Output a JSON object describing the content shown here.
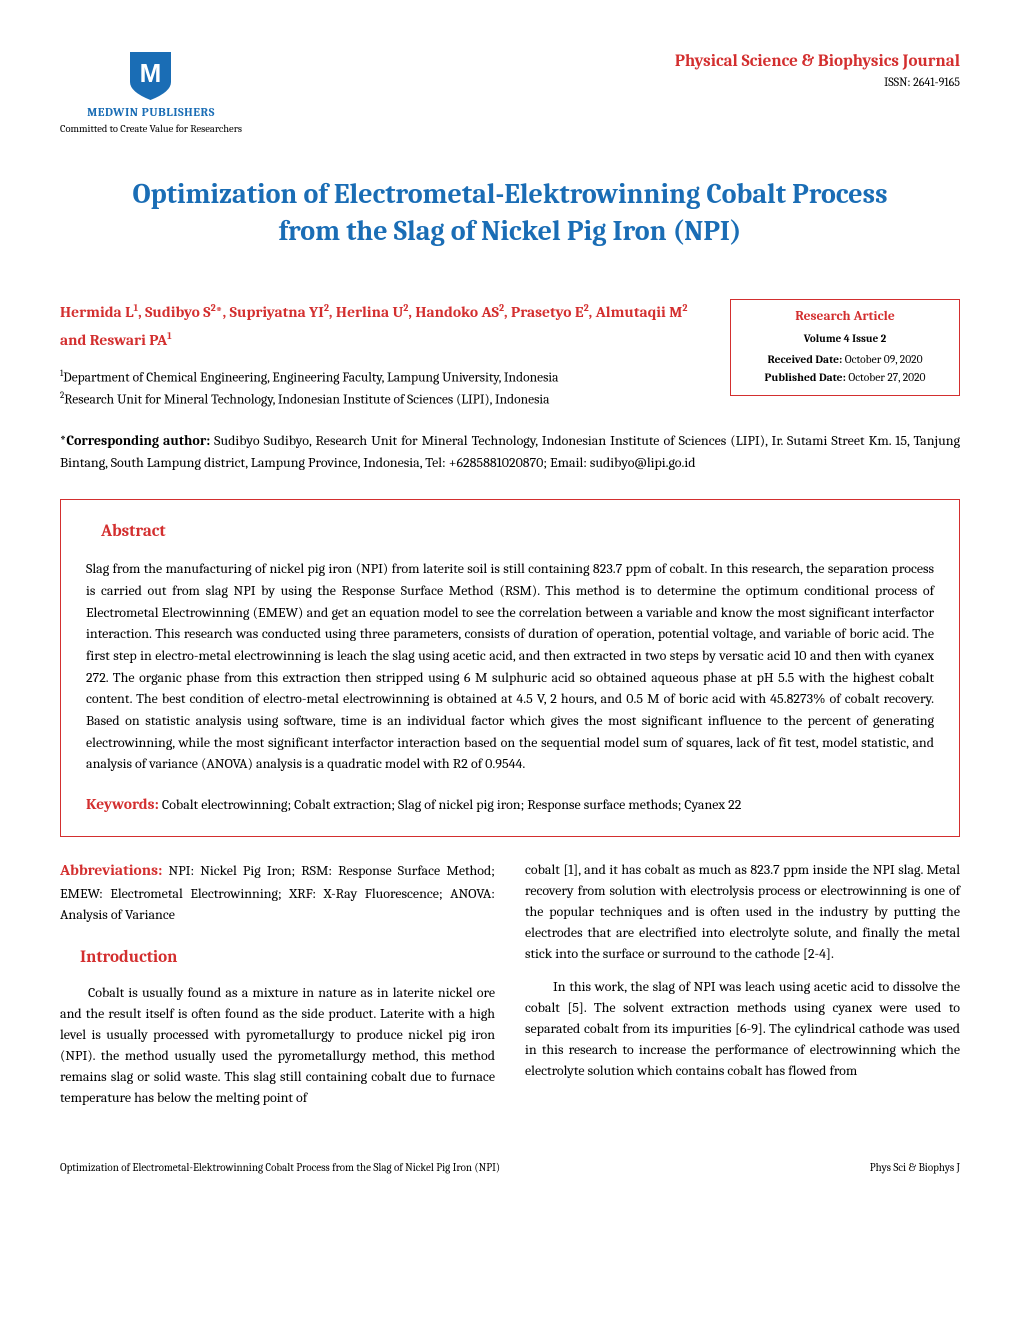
{
  "publisher": {
    "name": "MEDWIN PUBLISHERS",
    "tagline": "Committed to Create Value for Researchers",
    "logo_color": "#1a6db5",
    "logo_letter": "M"
  },
  "journal": {
    "name": "Physical Science & Biophysics Journal",
    "issn": "ISSN: 2641-9165"
  },
  "title": "Optimization of Electrometal-Elektrowinning Cobalt Process from the Slag of Nickel Pig Iron (NPI)",
  "authors_html": "Hermida L<sup>1</sup>, Sudibyo S<sup>2</sup>*, Supriyatna YI<sup>2</sup>, Herlina U<sup>2</sup>, Handoko AS<sup>2</sup>, Prasetyo E<sup>2</sup>, Almutaqii M<sup>2</sup> and Reswari PA<sup>1</sup>",
  "affiliations": [
    "Department of Chemical Engineering, Engineering Faculty, Lampung University, Indonesia",
    "Research Unit for Mineral Technology, Indonesian Institute of Sciences (LIPI), Indonesia"
  ],
  "info_box": {
    "type": "Research Article",
    "volume": "Volume 4 Issue 2",
    "received_label": "Received Date:",
    "received": "October 09, 2020",
    "published_label": "Published Date:",
    "published": "October 27, 2020"
  },
  "corresponding": {
    "label": "*Corresponding author:",
    "text": "Sudibyo Sudibyo, Research Unit for Mineral Technology, Indonesian Institute of Sciences (LIPI), Ir. Sutami Street Km. 15, Tanjung Bintang, South Lampung district, Lampung Province, Indonesia, Tel: +6285881020870; Email: sudibyo@lipi.go.id"
  },
  "abstract": {
    "heading": "Abstract",
    "text": "Slag from the manufacturing of nickel pig iron (NPI) from laterite soil is still containing 823.7 ppm of cobalt. In this research, the separation process is carried out from slag NPI by using the Response Surface Method (RSM). This method is to determine the optimum conditional process of Electrometal Electrowinning (EMEW) and get an equation model to see the correlation between a variable and know the most significant interfactor interaction. This research was conducted using three parameters, consists of duration of operation, potential voltage, and variable of boric acid. The first step in electro-metal electrowinning is leach the slag using acetic acid, and then extracted in two steps by versatic acid 10 and then with cyanex 272. The organic phase from this extraction then stripped using 6 M sulphuric acid so obtained aqueous phase at pH 5.5 with the highest cobalt content. The best condition of electro-metal electrowinning is obtained at 4.5 V, 2 hours, and 0.5 M of boric acid with 45.8273% of cobalt recovery. Based on statistic analysis using software, time is an individual factor which gives the most significant influence to the percent of generating electrowinning, while the most significant interfactor interaction based on the sequential model sum of squares, lack of fit test, model statistic, and analysis of variance (ANOVA) analysis is a quadratic model with R2 of 0.9544.",
    "keywords_label": "Keywords:",
    "keywords": "Cobalt electrowinning; Cobalt extraction; Slag of nickel pig iron; Response surface methods; Cyanex 22"
  },
  "body": {
    "abbrev_label": "Abbreviations:",
    "abbrev_text": "NPI: Nickel Pig Iron; RSM: Response Surface Method; EMEW: Electrometal Electrowinning; XRF: X-Ray Fluorescence; ANOVA: Analysis of Variance",
    "intro_heading": "Introduction",
    "col1_p1": "Cobalt is usually found as a mixture in nature as in laterite nickel ore and the result itself is often found as the side product. Laterite with a high level is usually processed with pyrometallurgy to produce nickel pig iron (NPI). the method usually used the pyrometallurgy method, this method remains slag or solid waste. This slag still containing cobalt due to furnace temperature has below the melting point of",
    "col2_p1": "cobalt [1], and it has cobalt as much as 823.7 ppm inside the NPI slag. Metal recovery from solution with electrolysis process or electrowinning is one of the popular techniques and is often used in the industry by putting the electrodes that are electrified into electrolyte solute, and finally the metal stick into the surface or surround to the cathode [2-4].",
    "col2_p2": "In this work, the slag of NPI was leach using acetic acid to dissolve the cobalt [5]. The solvent extraction methods using cyanex were used to separated cobalt from its impurities [6-9]. The cylindrical cathode was used in this research to increase the performance of electrowinning which the electrolyte solution which contains cobalt has flowed from"
  },
  "footer": {
    "left": "Optimization of Electrometal-Elektrowinning Cobalt Process from the Slag of Nickel Pig Iron (NPI)",
    "right": "Phys Sci & Biophys J"
  }
}
